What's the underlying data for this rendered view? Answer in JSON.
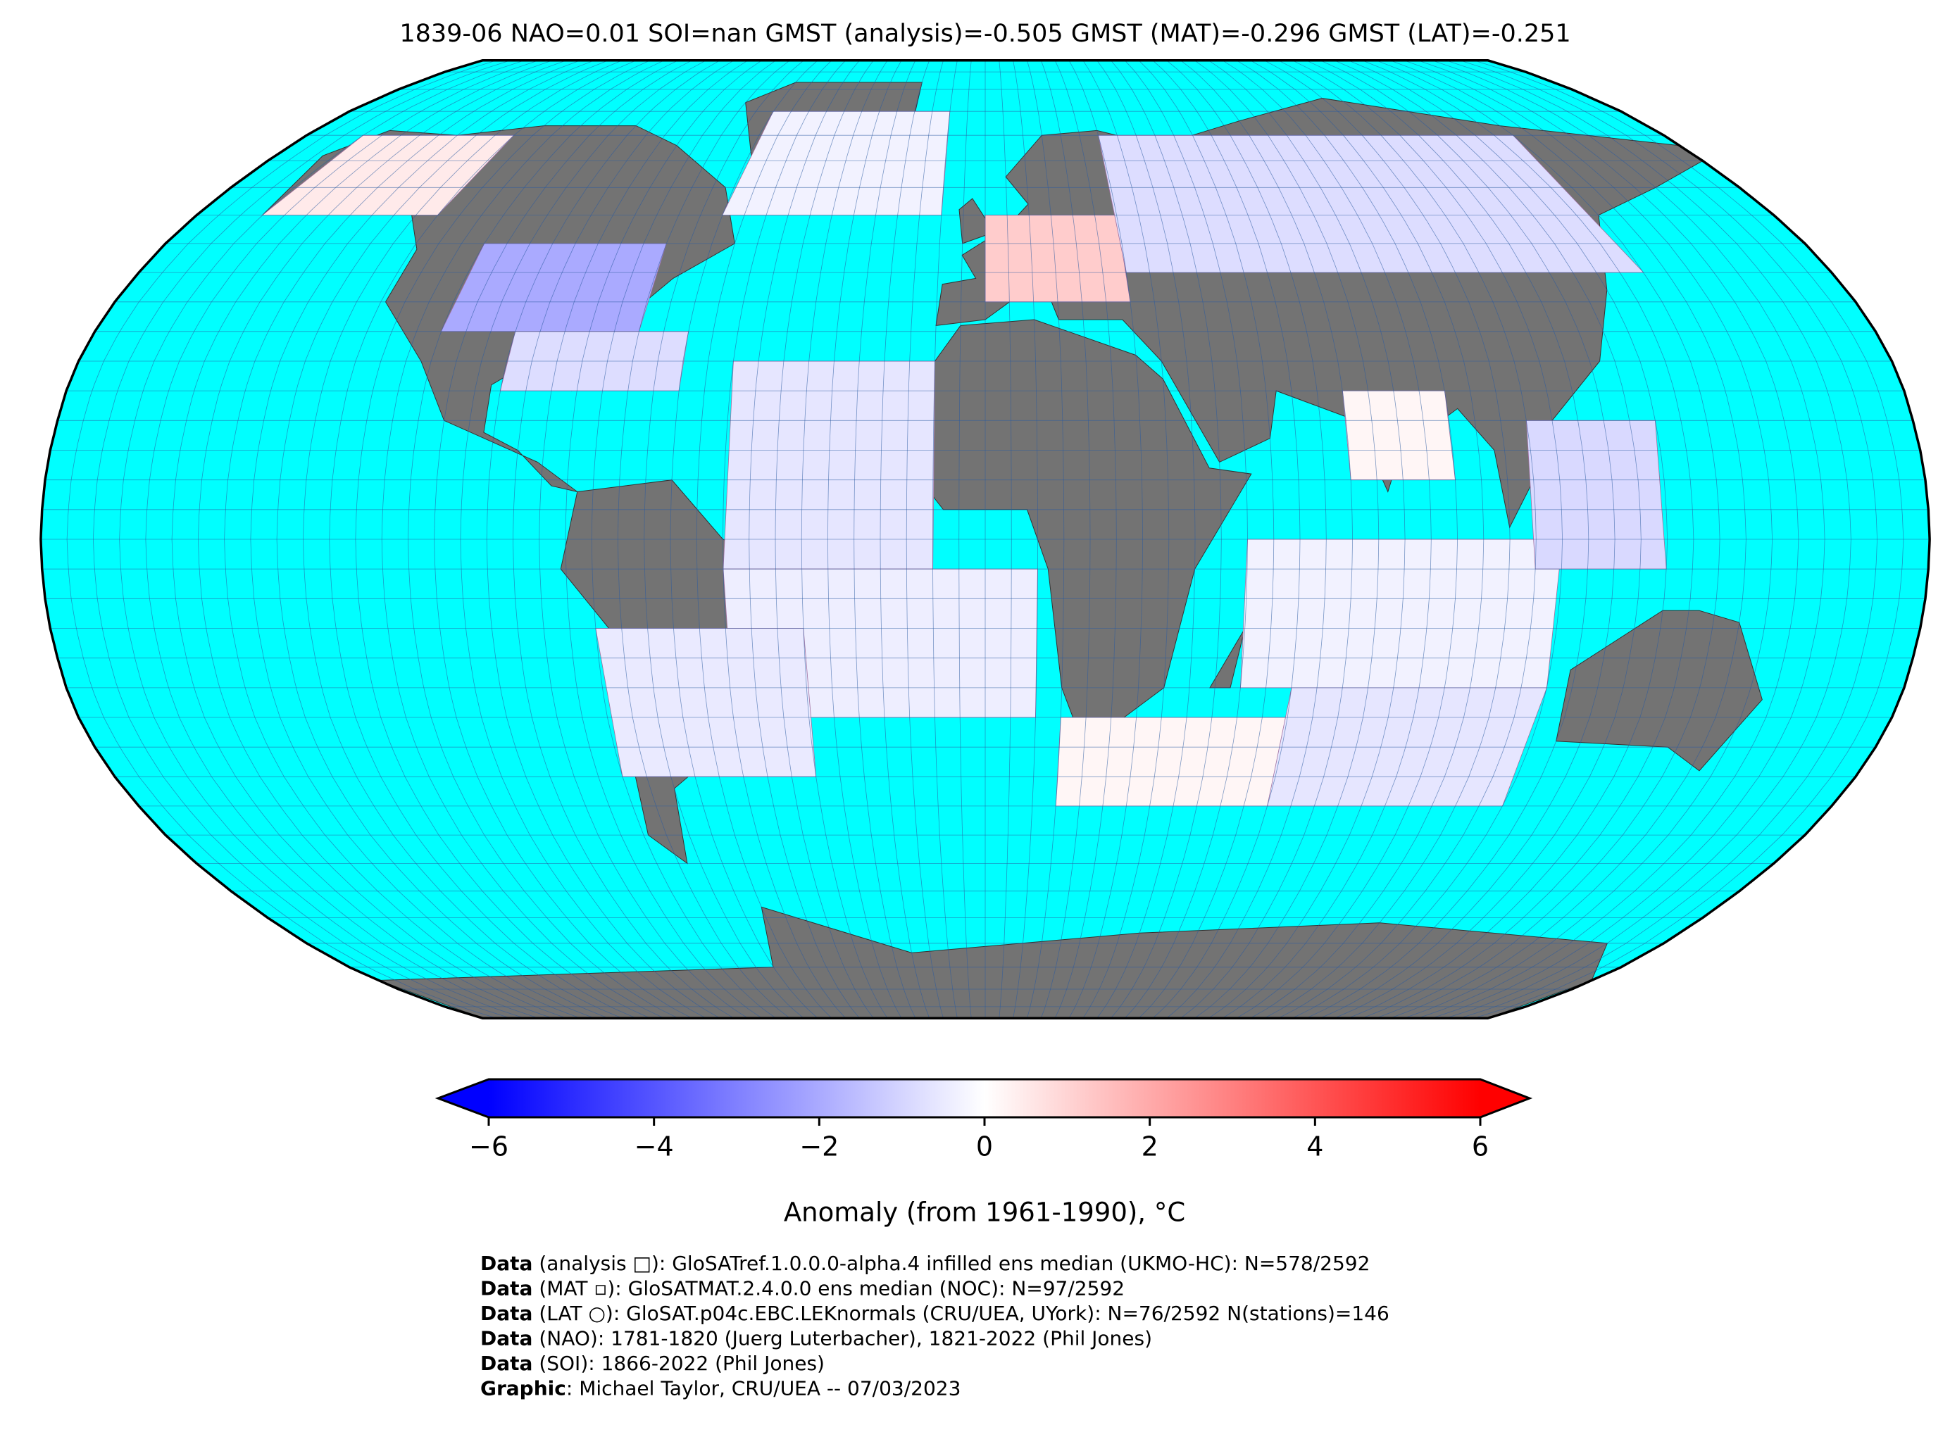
{
  "title": "1839-06 NAO=0.01 SOI=nan GMST (analysis)=-0.505 GMST (MAT)=-0.296 GMST (LAT)=-0.251",
  "map": {
    "projection": "robinson",
    "ocean_color": "#00ffff",
    "land_color": "#737373",
    "grid_step": 5,
    "anomaly_cells": [
      {
        "lon": [
          -165,
          -125
        ],
        "lat": [
          55,
          70
        ],
        "value": 0.5
      },
      {
        "lon": [
          -110,
          -70
        ],
        "lat": [
          35,
          50
        ],
        "value": -2.0
      },
      {
        "lon": [
          -95,
          -60
        ],
        "lat": [
          25,
          35
        ],
        "value": -0.8
      },
      {
        "lon": [
          -60,
          -10
        ],
        "lat": [
          55,
          75
        ],
        "value": -0.3
      },
      {
        "lon": [
          0,
          30
        ],
        "lat": [
          40,
          55
        ],
        "value": 1.2
      },
      {
        "lon": [
          30,
          140
        ],
        "lat": [
          45,
          70
        ],
        "value": -0.8
      },
      {
        "lon": [
          -50,
          -10
        ],
        "lat": [
          -5,
          30
        ],
        "value": -0.6
      },
      {
        "lon": [
          -50,
          10
        ],
        "lat": [
          -30,
          -5
        ],
        "value": -0.4
      },
      {
        "lon": [
          -75,
          -35
        ],
        "lat": [
          -40,
          -15
        ],
        "value": -0.5
      },
      {
        "lon": [
          50,
          110
        ],
        "lat": [
          -25,
          0
        ],
        "value": -0.3
      },
      {
        "lon": [
          70,
          90
        ],
        "lat": [
          10,
          25
        ],
        "value": 0.2
      },
      {
        "lon": [
          105,
          130
        ],
        "lat": [
          -5,
          20
        ],
        "value": -0.9
      },
      {
        "lon": [
          15,
          60
        ],
        "lat": [
          -45,
          -30
        ],
        "value": 0.2
      },
      {
        "lon": [
          60,
          110
        ],
        "lat": [
          -45,
          -25
        ],
        "value": -0.6
      }
    ]
  },
  "colorbar": {
    "label": "Anomaly (from 1961-1990), °C",
    "lim": [
      -6,
      6
    ],
    "ticks": [
      {
        "value": -6,
        "label": "−6"
      },
      {
        "value": -4,
        "label": "−4"
      },
      {
        "value": -2,
        "label": "−2"
      },
      0,
      2,
      4,
      6
    ]
  },
  "footer": [
    {
      "bold": "Data",
      "text": " (analysis □): GloSATref.1.0.0.0-alpha.4 infilled ens median (UKMO-HC): N=578/2592"
    },
    {
      "bold": "Data",
      "text": " (MAT ▫): GloSATMAT.2.4.0.0 ens median (NOC): N=97/2592"
    },
    {
      "bold": "Data",
      "text": " (LAT ○): GloSAT.p04c.EBC.LEKnormals (CRU/UEA, UYork): N=76/2592 N(stations)=146"
    },
    {
      "bold": "Data",
      "text": " (NAO): 1781-1820 (Juerg Luterbacher), 1821-2022 (Phil Jones)"
    },
    {
      "bold": "Data",
      "text": " (SOI): 1866-2022 (Phil Jones)"
    },
    {
      "bold": "Graphic",
      "text": ": Michael Taylor, CRU/UEA -- 07/03/2023"
    }
  ]
}
